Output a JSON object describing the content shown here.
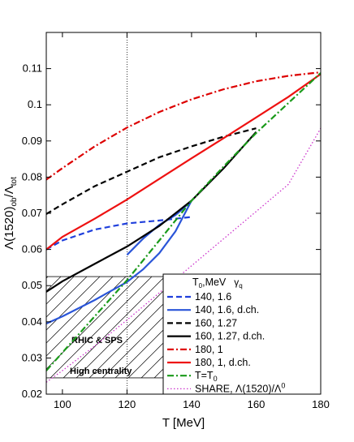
{
  "chart_data": {
    "type": "line",
    "xlabel": "T [MeV]",
    "ylabel": "Λ(1520)ob/Λtot",
    "xlim": [
      95,
      180
    ],
    "ylim": [
      0.02,
      0.12
    ],
    "x_ticks": [
      "100",
      "120",
      "140",
      "160",
      "180"
    ],
    "y_ticks": [
      "0.02",
      "0.03",
      "0.04",
      "0.05",
      "0.06",
      "0.07",
      "0.08",
      "0.09",
      "0.1",
      "0.11"
    ],
    "grid": false,
    "vertical_line_x": 120,
    "legend_header": {
      "t0": "T",
      "t0_sub": "0",
      "t0_unit": ",MeV",
      "gamma": "γ",
      "gamma_sub": "q"
    },
    "shaded_region": {
      "x": [
        95,
        139
      ],
      "y": [
        0.0245,
        0.0525
      ],
      "labels": [
        "RHIC & SPS",
        "High centrality"
      ]
    },
    "series": [
      {
        "name": "140, 1.6",
        "color": "#1f3fdc",
        "style": "dashed",
        "x": [
          95,
          100,
          110,
          120,
          130,
          140
        ],
        "y": [
          0.06,
          0.0625,
          0.0655,
          0.0672,
          0.068,
          0.069
        ]
      },
      {
        "name": "140, 1.6, d.ch.",
        "color": "#2a55d8",
        "style": "solid",
        "x": [
          95,
          100,
          110,
          120,
          125,
          130,
          135,
          140,
          137,
          135,
          130,
          125,
          120
        ],
        "y": [
          0.0395,
          0.0415,
          0.046,
          0.051,
          0.0545,
          0.059,
          0.065,
          0.0735,
          0.071,
          0.0695,
          0.0668,
          0.063,
          0.0585
        ]
      },
      {
        "name": "160, 1.27",
        "color": "#000000",
        "style": "dashed",
        "x": [
          95,
          100,
          110,
          120,
          130,
          140,
          150,
          160
        ],
        "y": [
          0.0698,
          0.0725,
          0.0775,
          0.0815,
          0.0855,
          0.0885,
          0.0912,
          0.0935
        ]
      },
      {
        "name": "160, 1.27, d.ch.",
        "color": "#000000",
        "style": "solid",
        "x": [
          95,
          100,
          110,
          120,
          130,
          140,
          150,
          160
        ],
        "y": [
          0.0483,
          0.0512,
          0.056,
          0.0608,
          0.0665,
          0.0735,
          0.0825,
          0.0925
        ]
      },
      {
        "name": "180, 1",
        "color": "#dd0000",
        "style": "dashdot",
        "x": [
          95,
          100,
          110,
          120,
          130,
          140,
          150,
          160,
          170,
          180
        ],
        "y": [
          0.0793,
          0.0825,
          0.0885,
          0.0937,
          0.098,
          0.1015,
          0.1043,
          0.1065,
          0.108,
          0.109
        ]
      },
      {
        "name": "180, 1, d.ch.",
        "color": "#ee1111",
        "style": "solid",
        "x": [
          95,
          100,
          110,
          120,
          130,
          140,
          150,
          160,
          170,
          180
        ],
        "y": [
          0.06,
          0.0635,
          0.0685,
          0.0738,
          0.0795,
          0.0852,
          0.0908,
          0.0965,
          0.1022,
          0.1085
        ]
      },
      {
        "name": "T=T",
        "name_sub": "0",
        "color": "#1a9a1a",
        "style": "dashdot",
        "x": [
          95,
          100,
          110,
          120,
          130,
          140,
          150,
          160,
          170,
          180
        ],
        "y": [
          0.0265,
          0.0315,
          0.0415,
          0.0515,
          0.0625,
          0.0735,
          0.083,
          0.0922,
          0.1005,
          0.1088
        ]
      },
      {
        "name": "SHARE, Λ(1520)/Λ",
        "name_sup": "0",
        "color": "#cc33cc",
        "style": "dotted",
        "x": [
          95,
          100,
          110,
          120,
          130,
          140,
          150,
          160,
          170,
          180
        ],
        "y": [
          0.0233,
          0.0265,
          0.0333,
          0.0405,
          0.048,
          0.0555,
          0.063,
          0.0705,
          0.078,
          0.0935
        ]
      }
    ]
  }
}
